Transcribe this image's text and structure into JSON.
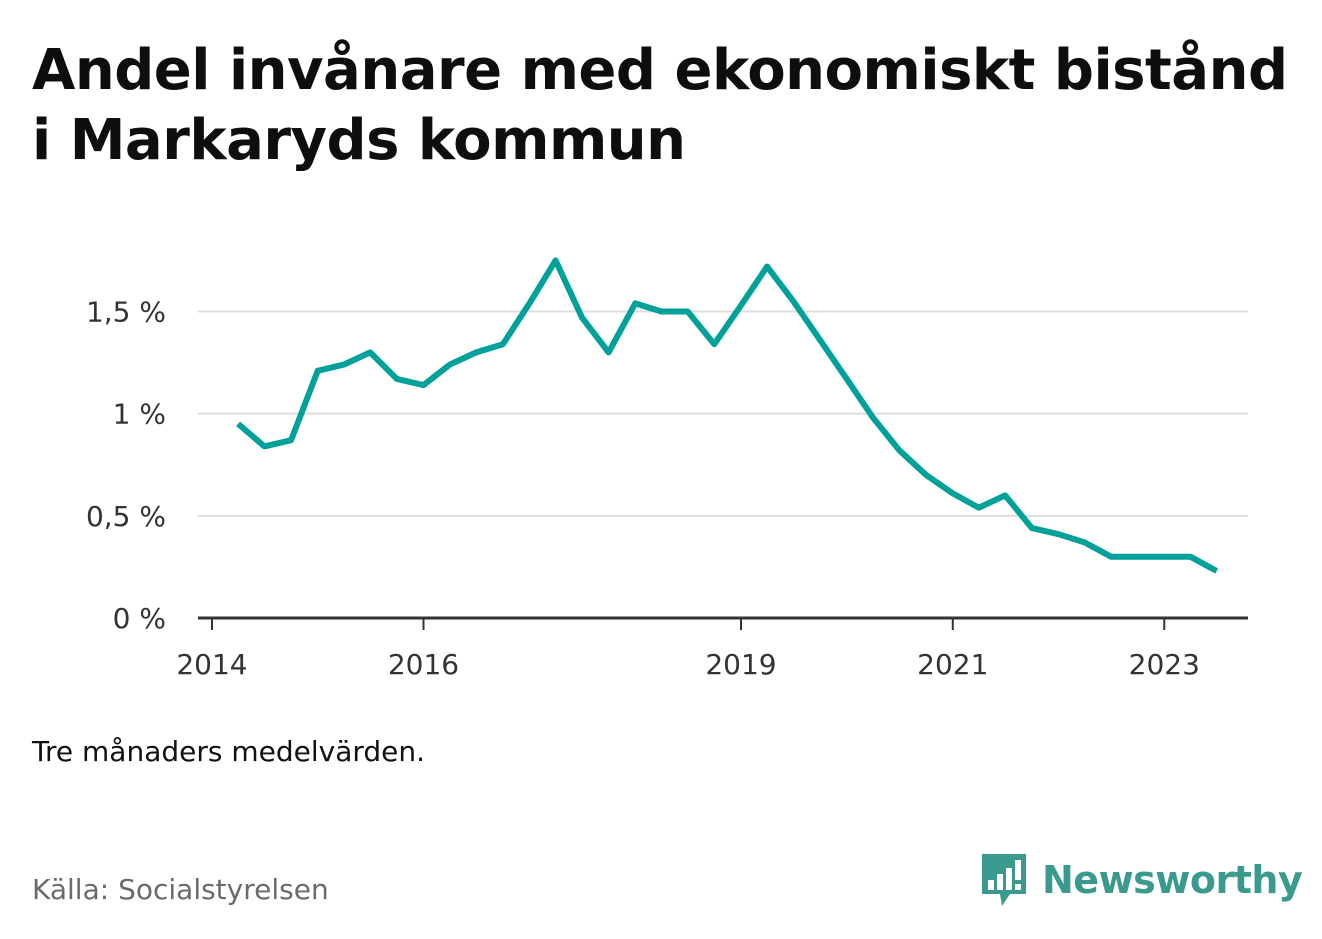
{
  "title": "Andel invånare med ekonomiskt bistånd i Markaryds kommun",
  "note": "Tre månaders medelvärden.",
  "source": "Källa: Socialstyrelsen",
  "brand": {
    "name": "Newsworthy",
    "color": "#3a9a8e",
    "icon": "bar-chart-speech-bubble-icon"
  },
  "colors": {
    "line": "#00a19a",
    "grid": "#dddddd",
    "axis": "#333333",
    "tick_text": "#333333"
  },
  "chart_data": {
    "type": "line",
    "title": "Andel invånare med ekonomiskt bistånd i Markaryds kommun",
    "xlabel": "",
    "ylabel": "",
    "ylim": [
      0,
      0.0185
    ],
    "y_ticks": [
      {
        "value": 0,
        "label": "0 %"
      },
      {
        "value": 0.005,
        "label": "0,5 %"
      },
      {
        "value": 0.01,
        "label": "1 %"
      },
      {
        "value": 0.015,
        "label": "1,5 %"
      }
    ],
    "x_ticks": [
      {
        "value": "2014-01-01",
        "label": "2014"
      },
      {
        "value": "2016-01-01",
        "label": "2016"
      },
      {
        "value": "2019-01-01",
        "label": "2019"
      },
      {
        "value": "2021-01-01",
        "label": "2021"
      },
      {
        "value": "2023-01-01",
        "label": "2023"
      }
    ],
    "xlim": [
      "2014-01-01",
      "2024-01-01"
    ],
    "grid": true,
    "legend": "none",
    "series": [
      {
        "x": [
          "2014-04-01",
          "2014-07-01",
          "2014-10-01",
          "2015-01-01",
          "2015-04-01",
          "2015-07-01",
          "2015-10-01",
          "2016-01-01",
          "2016-04-01",
          "2016-07-01",
          "2016-10-01",
          "2017-01-01",
          "2017-04-01",
          "2017-07-01",
          "2017-10-01",
          "2018-01-01",
          "2018-04-01",
          "2018-07-01",
          "2018-10-01",
          "2019-01-01",
          "2019-04-01",
          "2019-07-01",
          "2019-10-01",
          "2020-01-01",
          "2020-04-01",
          "2020-07-01",
          "2020-10-01",
          "2021-01-01",
          "2021-04-01",
          "2021-07-01",
          "2021-10-01",
          "2022-01-01",
          "2022-04-01",
          "2022-07-01",
          "2022-10-01",
          "2023-01-01",
          "2023-04-01",
          "2023-07-01"
        ],
        "values": [
          0.0095,
          0.0084,
          0.0087,
          0.0121,
          0.0124,
          0.013,
          0.0117,
          0.0114,
          0.0124,
          0.013,
          0.0134,
          0.0154,
          0.0175,
          0.0147,
          0.013,
          0.0154,
          0.015,
          0.015,
          0.0134,
          0.0153,
          0.0172,
          0.0155,
          0.0136,
          0.0117,
          0.0098,
          0.0082,
          0.007,
          0.0061,
          0.0054,
          0.006,
          0.0044,
          0.0041,
          0.0037,
          0.003,
          0.003,
          0.003,
          0.003,
          0.0023
        ]
      }
    ]
  }
}
